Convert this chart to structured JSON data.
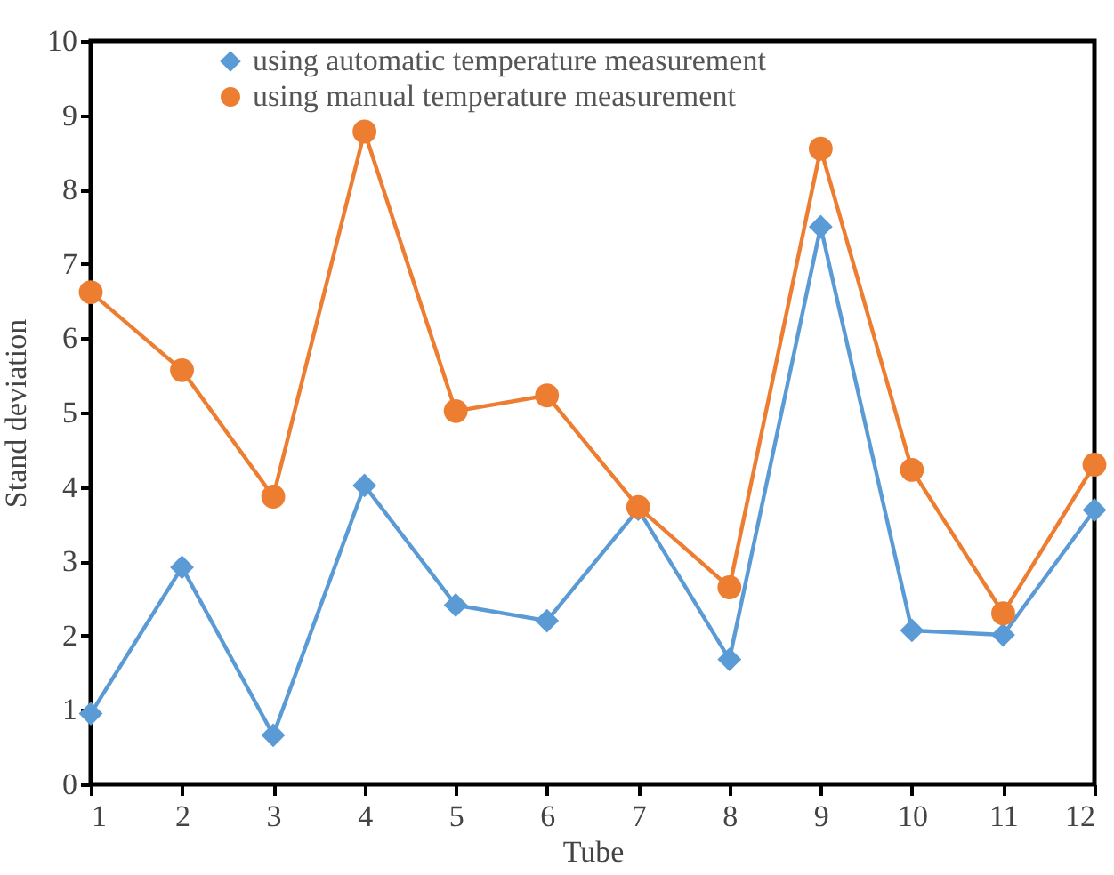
{
  "chart_data": {
    "type": "line",
    "xlabel": "Tube",
    "ylabel": "Stand deviation",
    "x": [
      1,
      2,
      3,
      4,
      5,
      6,
      7,
      8,
      9,
      10,
      11,
      12
    ],
    "xlim": [
      1,
      12
    ],
    "xticks": [
      1,
      2,
      3,
      4,
      5,
      6,
      7,
      8,
      9,
      10,
      11,
      12
    ],
    "ylim": [
      0,
      10
    ],
    "yticks": [
      0,
      1,
      2,
      3,
      4,
      5,
      6,
      7,
      8,
      9,
      10
    ],
    "grid": false,
    "legend": "top",
    "line_style": "solid",
    "series": [
      {
        "name": "using automatic temperature measurement",
        "color": "#5b9bd5",
        "marker": "diamond",
        "values": [
          0.95,
          2.92,
          0.66,
          4.02,
          2.41,
          2.2,
          3.7,
          1.68,
          7.5,
          2.07,
          2.01,
          3.69
        ]
      },
      {
        "name": "using manual temperature measurement",
        "color": "#ed7d31",
        "marker": "circle",
        "values": [
          6.62,
          5.57,
          3.87,
          8.78,
          5.02,
          5.23,
          3.73,
          2.65,
          8.55,
          4.23,
          2.3,
          4.3
        ]
      }
    ]
  }
}
